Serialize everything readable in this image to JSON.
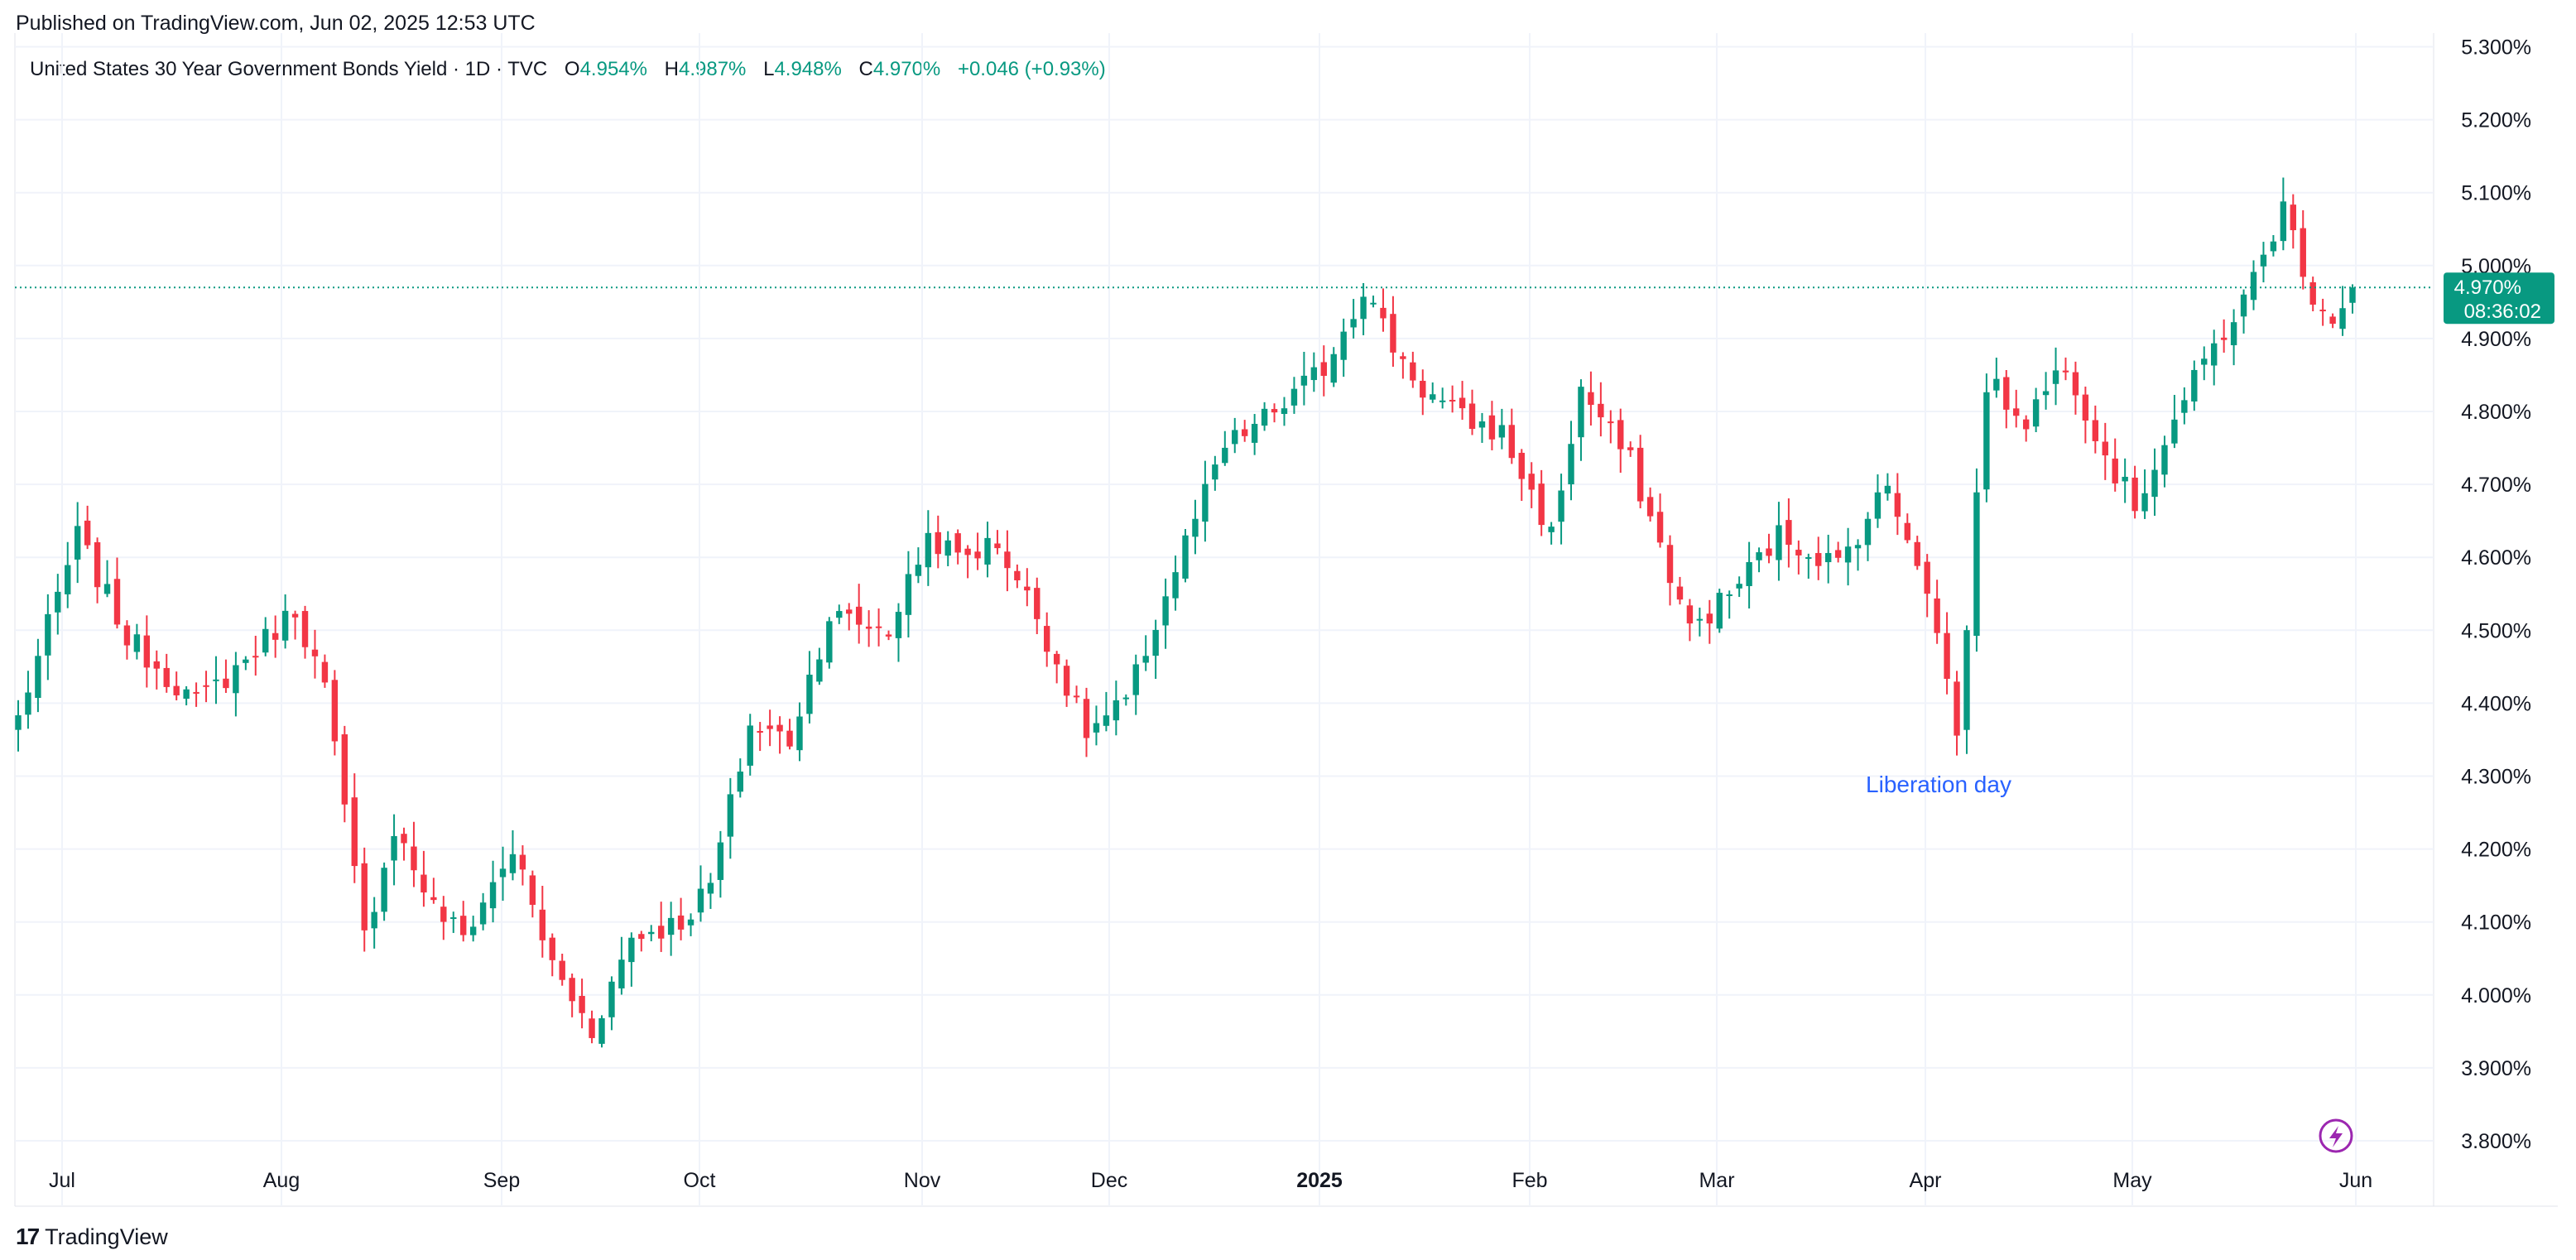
{
  "header": {
    "published": "Published on TradingView.com, Jun 02, 2025 12:53 UTC"
  },
  "legend": {
    "symbol": "United States 30 Year Government Bonds Yield · 1D · TVC",
    "open_label": "O",
    "open": "4.954%",
    "high_label": "H",
    "high": "4.987%",
    "low_label": "L",
    "low": "4.948%",
    "close_label": "C",
    "close": "4.970%",
    "change": "+0.046 (+0.93%)"
  },
  "price_tag": {
    "value": "4.970%",
    "countdown": "08:36:02"
  },
  "footer": {
    "brand": "TradingView",
    "brand_mark": "17"
  },
  "colors": {
    "up": "#089981",
    "down": "#F23645",
    "grid": "#F0F3FA",
    "annotation": "#2962FF",
    "tag_bg": "#089981",
    "lightning": "#9C27B0"
  },
  "chart_data": {
    "type": "candlestick",
    "title": "United States 30 Year Government Bonds Yield",
    "interval": "1D",
    "ylim": [
      3.76,
      5.31
    ],
    "y_ticks": [
      "5.300%",
      "5.200%",
      "5.100%",
      "5.000%",
      "4.900%",
      "4.800%",
      "4.700%",
      "4.600%",
      "4.500%",
      "4.400%",
      "4.300%",
      "4.200%",
      "4.100%",
      "4.000%",
      "3.900%",
      "3.800%"
    ],
    "x_ticks": [
      {
        "label": "Jul",
        "x": 0
      },
      {
        "label": "Aug",
        "x": 1
      },
      {
        "label": "Sep",
        "x": 2
      },
      {
        "label": "Oct",
        "x": 3
      },
      {
        "label": "Nov",
        "x": 4
      },
      {
        "label": "Dec",
        "x": 5
      },
      {
        "label": "2025",
        "x": 6,
        "bold": true
      },
      {
        "label": "Feb",
        "x": 7
      },
      {
        "label": "Mar",
        "x": 8
      },
      {
        "label": "Apr",
        "x": 9
      },
      {
        "label": "May",
        "x": 10
      },
      {
        "label": "Jun",
        "x": 11
      }
    ],
    "current_price": 4.97,
    "annotation": {
      "text": "Liberation day"
    },
    "waypoints": [
      [
        0,
        4.38
      ],
      [
        6,
        4.63
      ],
      [
        11,
        4.49
      ],
      [
        18,
        4.4
      ],
      [
        23,
        4.46
      ],
      [
        28,
        4.53
      ],
      [
        31,
        4.42
      ],
      [
        35,
        4.08
      ],
      [
        38,
        4.23
      ],
      [
        42,
        4.12
      ],
      [
        45,
        4.08
      ],
      [
        50,
        4.2
      ],
      [
        54,
        4.04
      ],
      [
        58,
        3.95
      ],
      [
        62,
        4.08
      ],
      [
        67,
        4.1
      ],
      [
        70,
        4.15
      ],
      [
        74,
        4.37
      ],
      [
        78,
        4.35
      ],
      [
        82,
        4.52
      ],
      [
        88,
        4.5
      ],
      [
        92,
        4.63
      ],
      [
        95,
        4.6
      ],
      [
        99,
        4.62
      ],
      [
        103,
        4.52
      ],
      [
        108,
        4.36
      ],
      [
        112,
        4.4
      ],
      [
        118,
        4.62
      ],
      [
        122,
        4.75
      ],
      [
        128,
        4.81
      ],
      [
        132,
        4.86
      ],
      [
        136,
        4.97
      ],
      [
        139,
        4.89
      ],
      [
        142,
        4.83
      ],
      [
        146,
        4.79
      ],
      [
        150,
        4.77
      ],
      [
        155,
        4.63
      ],
      [
        158,
        4.83
      ],
      [
        163,
        4.73
      ],
      [
        169,
        4.5
      ],
      [
        173,
        4.55
      ],
      [
        178,
        4.63
      ],
      [
        184,
        4.59
      ],
      [
        189,
        4.7
      ],
      [
        192,
        4.6
      ],
      [
        195,
        4.44
      ],
      [
        196,
        4.35
      ],
      [
        199,
        4.84
      ],
      [
        203,
        4.79
      ],
      [
        207,
        4.87
      ],
      [
        211,
        4.74
      ],
      [
        214,
        4.67
      ],
      [
        218,
        4.79
      ],
      [
        222,
        4.89
      ],
      [
        225,
        4.95
      ],
      [
        229,
        5.08
      ],
      [
        232,
        4.96
      ],
      [
        234,
        4.93
      ],
      [
        236,
        4.97
      ]
    ],
    "n_days": 237
  }
}
